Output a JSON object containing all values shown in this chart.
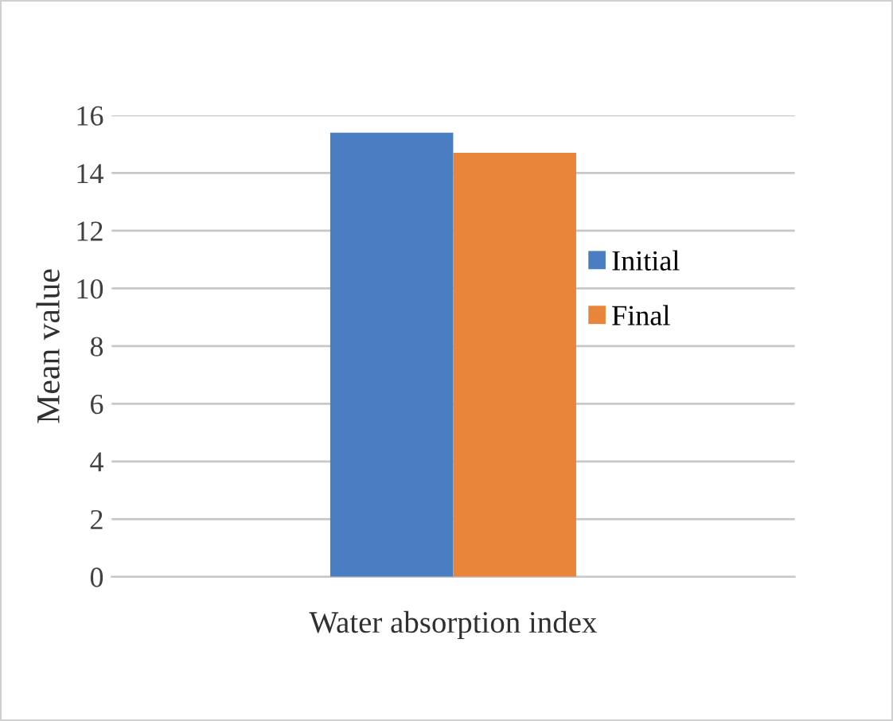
{
  "chart_data": {
    "type": "bar",
    "xlabel": "Water absorption index",
    "ylabel": "Mean value",
    "categories": [
      null
    ],
    "series": [
      {
        "name": "Initial",
        "color": "#4a7dc1",
        "values": [
          15.4
        ]
      },
      {
        "name": "Final",
        "color": "#e9843b",
        "values": [
          14.7
        ]
      }
    ],
    "ylim": [
      0,
      16
    ],
    "yticks": [
      0,
      2,
      4,
      6,
      8,
      10,
      12,
      14,
      16
    ],
    "grid": "y",
    "legend": "right"
  }
}
